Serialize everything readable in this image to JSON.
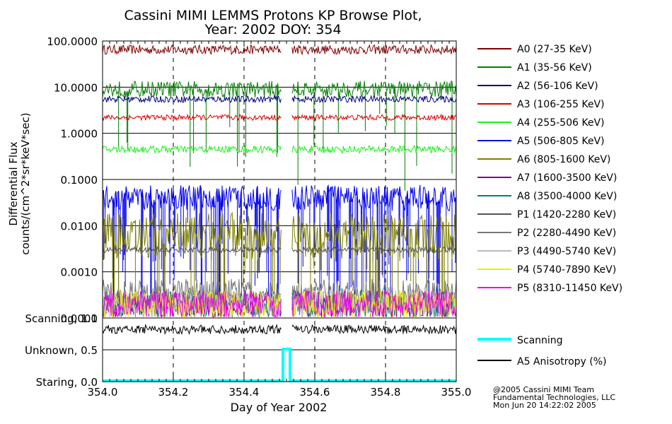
{
  "chart_data": [
    {
      "type": "line",
      "title": "Cassini MIMI LEMMS Protons KP Browse Plot,",
      "subtitle": "Year: 2002 DOY: 354",
      "xlabel": "",
      "ylabel": [
        "Differential Flux",
        "counts/(cm^2*sr*keV*sec)"
      ],
      "xlim": [
        354.0,
        355.0
      ],
      "ylim": [
        0.0001,
        100.0
      ],
      "yscale": "log",
      "grid": true,
      "legend_position": "right",
      "y_ticks": [
        {
          "v": 100.0,
          "label": "100.0000"
        },
        {
          "v": 10.0,
          "label": "10.0000"
        },
        {
          "v": 1.0,
          "label": "1.0000"
        },
        {
          "v": 0.1,
          "label": "0.1000"
        },
        {
          "v": 0.01,
          "label": "0.0100"
        },
        {
          "v": 0.001,
          "label": "0.0010"
        },
        {
          "v": 0.0001,
          "label": "0.0001"
        }
      ],
      "data_gap": [
        354.505,
        354.535
      ],
      "series": [
        {
          "name": "A0 (27-35 KeV)",
          "color": "#7f0000",
          "level": 65,
          "spread": 0.1,
          "spikes": 0
        },
        {
          "name": "A1 (35-56 KeV)",
          "color": "#007f00",
          "level": 9,
          "spread": 0.18,
          "spikes": 0.05
        },
        {
          "name": "A2 (56-106 KeV)",
          "color": "#00007f",
          "level": 5.5,
          "spread": 0.07,
          "spikes": 0
        },
        {
          "name": "A3 (106-255 KeV)",
          "color": "#dd0000",
          "level": 2.2,
          "spread": 0.06,
          "spikes": 0
        },
        {
          "name": "A4 (255-506 KeV)",
          "color": "#22ee22",
          "level": 0.45,
          "spread": 0.08,
          "spikes": 0
        },
        {
          "name": "A5 (506-805 KeV)",
          "color": "#0000ee",
          "level": 0.04,
          "spread": 0.28,
          "spikes": 0.35
        },
        {
          "name": "A6 (805-1600 KeV)",
          "color": "#7f7f00",
          "level": 0.006,
          "spread": 0.5,
          "spikes": 0.12
        },
        {
          "name": "A7 (1600-3500 KeV)",
          "color": "#7f007f",
          "level": 0.0002,
          "spread": 0.3,
          "spikes": 0.01
        },
        {
          "name": "A8 (3500-4000 KeV)",
          "color": "#007f7f",
          "level": 0.0002,
          "spread": 0.3,
          "spikes": 0.005
        },
        {
          "name": "P1 (1420-2280 KeV)",
          "color": "#555555",
          "level": 0.003,
          "spread": 0.06,
          "spikes": 0
        },
        {
          "name": "P2 (2280-4490 KeV)",
          "color": "#777777",
          "level": 0.00035,
          "spread": 0.3,
          "spikes": 0.03
        },
        {
          "name": "P3 (4490-5740 KeV)",
          "color": "#bbbbbb",
          "level": 0.0002,
          "spread": 0.3,
          "spikes": 0.03
        },
        {
          "name": "P4 (5740-7890 KeV)",
          "color": "#eeee00",
          "level": 0.0002,
          "spread": 0.3,
          "spikes": 0.015
        },
        {
          "name": "P5 (8310-11450 KeV)",
          "color": "#ee00ee",
          "level": 0.0002,
          "spread": 0.3,
          "spikes": 0.005
        }
      ]
    },
    {
      "type": "line",
      "xlabel": "Day of Year 2002",
      "xlim": [
        354.0,
        355.0
      ],
      "x_ticks": [
        {
          "v": 354.0,
          "label": "354.0"
        },
        {
          "v": 354.2,
          "label": "354.2"
        },
        {
          "v": 354.4,
          "label": "354.4"
        },
        {
          "v": 354.6,
          "label": "354.6"
        },
        {
          "v": 354.8,
          "label": "354.8"
        },
        {
          "v": 355.0,
          "label": "355.0"
        }
      ],
      "y_ticks": [
        {
          "v": 1.0,
          "label": "Scanning, 1.0"
        },
        {
          "v": 0.5,
          "label": "Unknown, 0.5"
        },
        {
          "v": 0.0,
          "label": "Staring, 0.0"
        }
      ],
      "ylim": [
        0.0,
        1.0
      ],
      "legend_position": "right",
      "series": [
        {
          "name": "Scanning",
          "color": "#00ffff",
          "x": [
            354.0,
            354.51,
            354.51,
            354.53,
            354.53,
            355.0
          ],
          "y": [
            0.0,
            0.0,
            0.5,
            0.5,
            0.0,
            0.0
          ]
        },
        {
          "name": "A5 Anisotropy (%)",
          "color": "#000000",
          "level": 0.82,
          "spread": 0.07
        }
      ]
    }
  ],
  "credits": [
    "@2005 Cassini MIMI Team",
    "Fundamental Technologies, LLC",
    "Mon Jun 20 14:22:02 2005"
  ]
}
